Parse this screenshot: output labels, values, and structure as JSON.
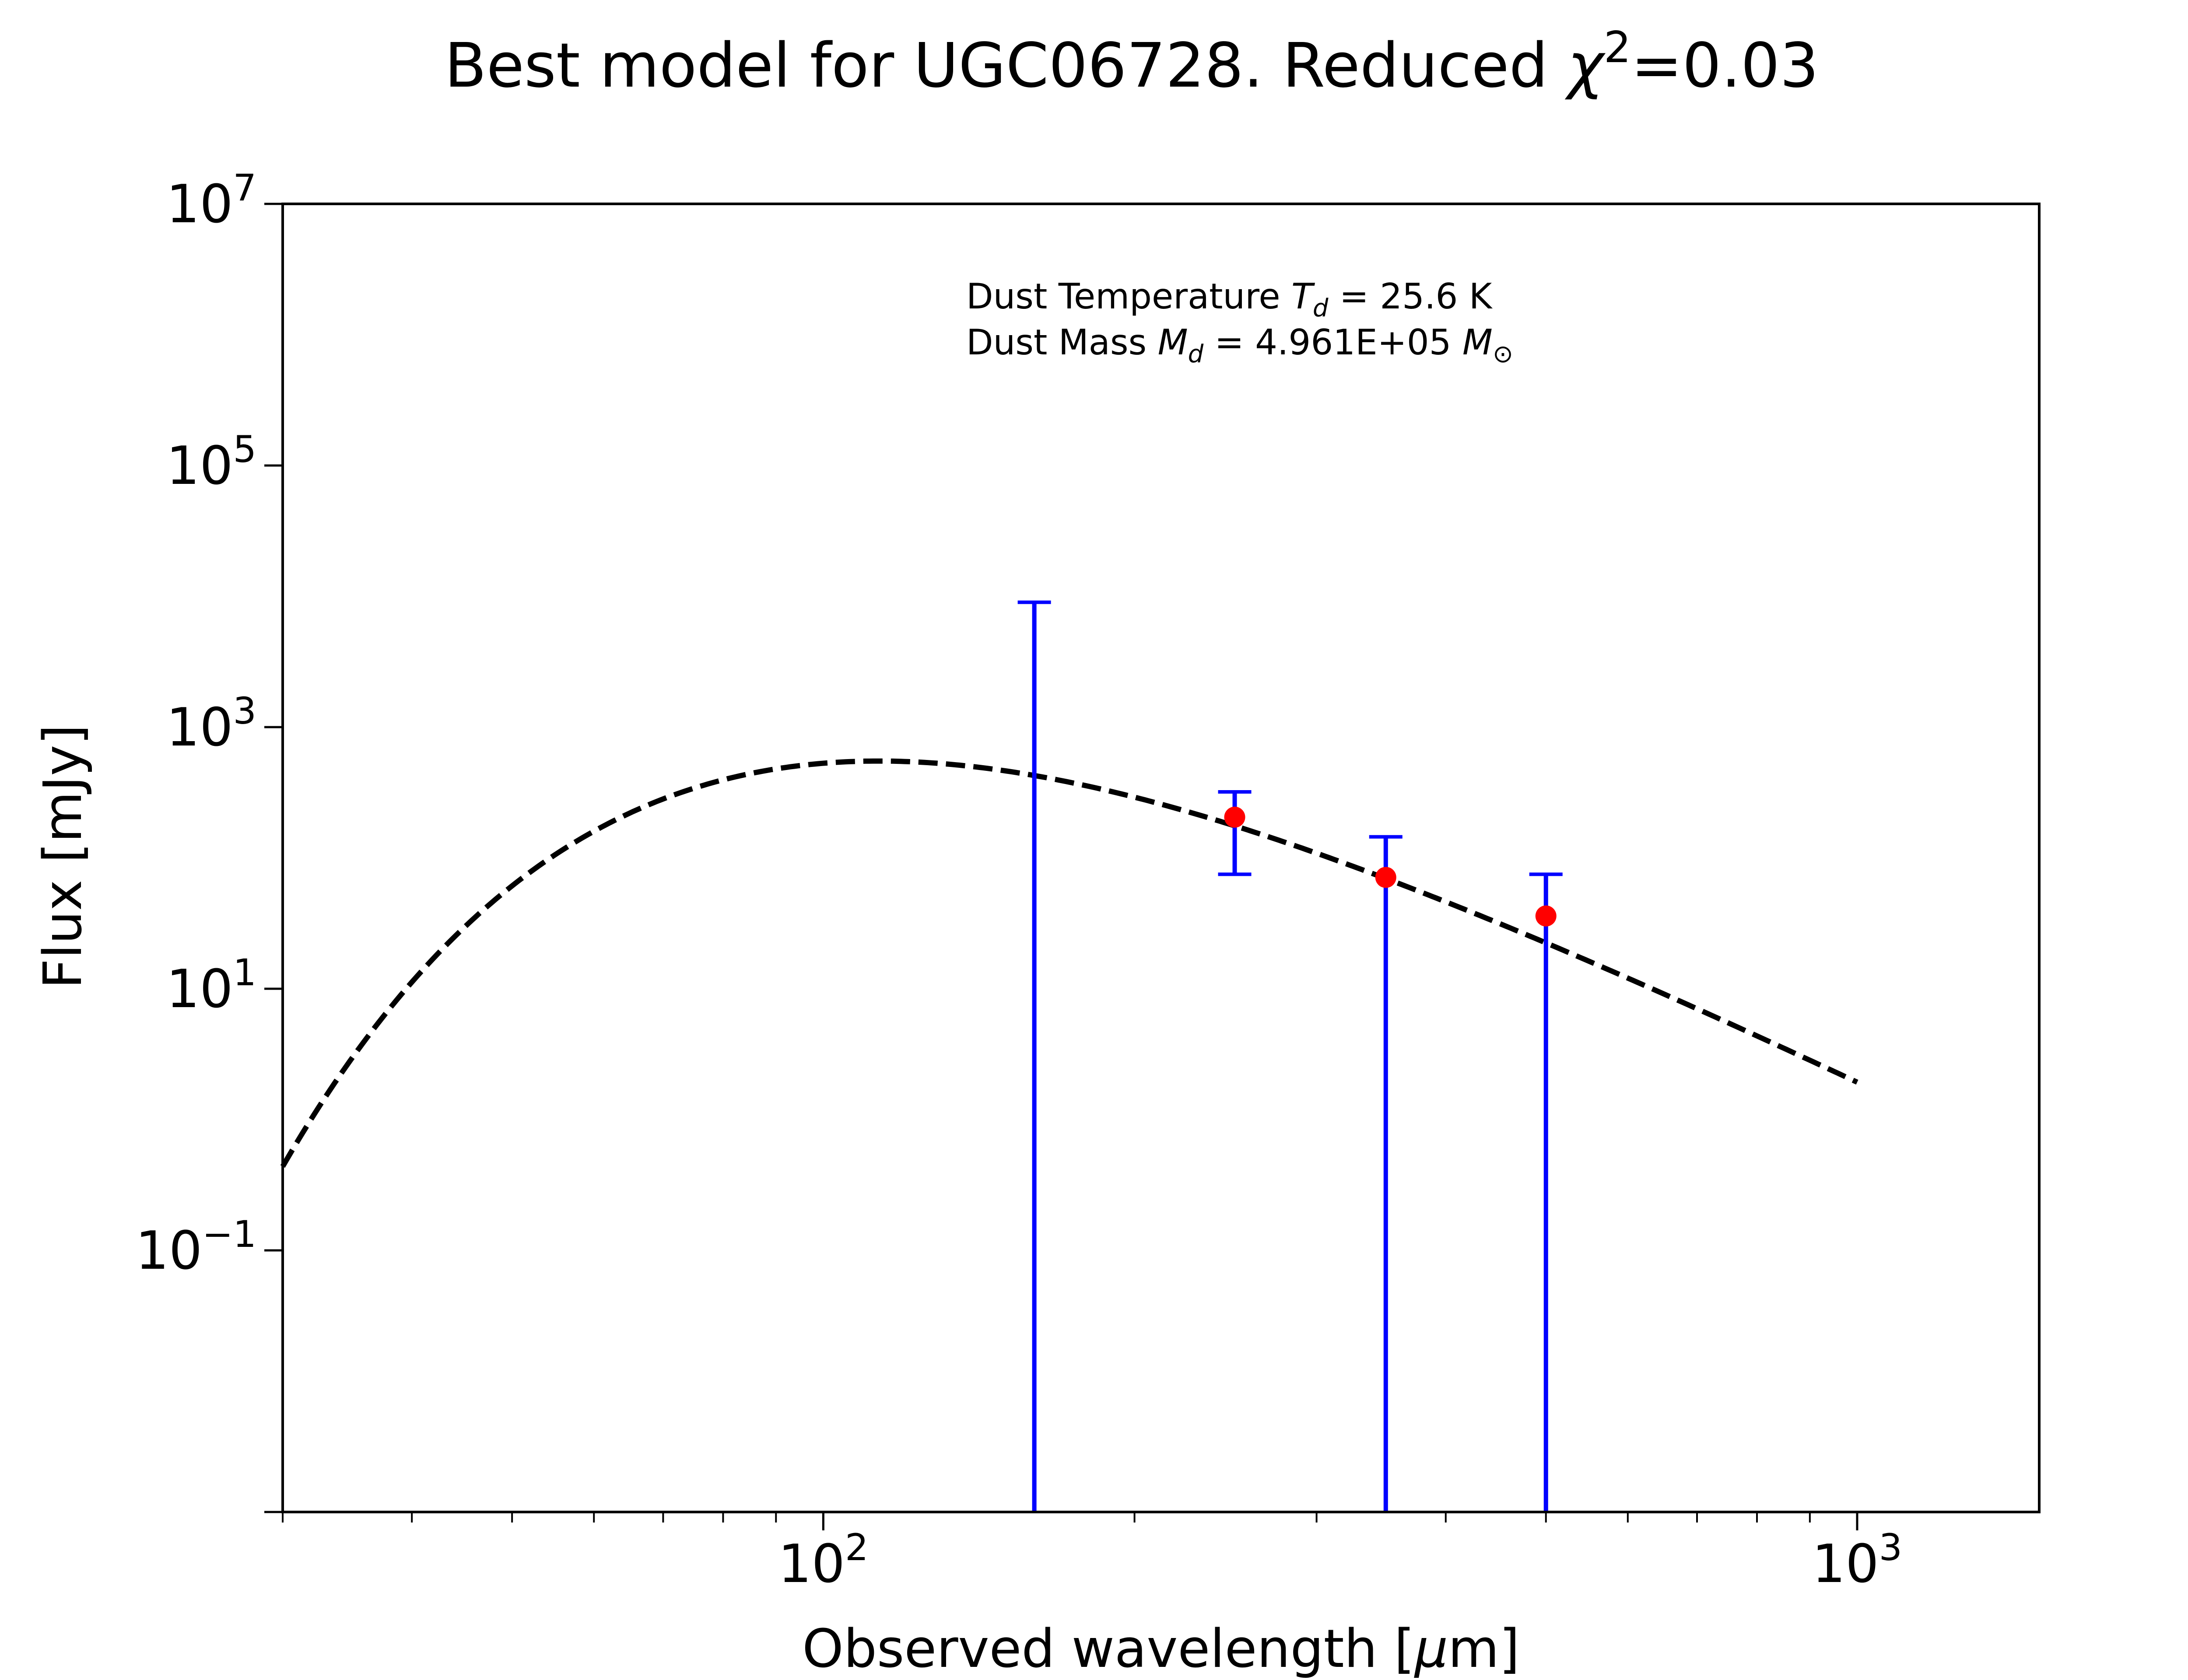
{
  "chart_data": {
    "type": "scatter",
    "title": {
      "prefix": "Best model for UGC06728. Reduced ",
      "symbol": "χ",
      "sup": "2",
      "suffix": "=0.03"
    },
    "xlabel": {
      "prefix": "Observed wavelength [",
      "symbol": "μ",
      "suffix": "m]"
    },
    "ylabel": "Flux [mJy]",
    "x_scale": "log",
    "y_scale": "log",
    "xlim": [
      30,
      1500
    ],
    "ylim": [
      0.001,
      10000000
    ],
    "x_ticks": [
      {
        "value": 100,
        "base": "10",
        "exp": "2"
      },
      {
        "value": 1000,
        "base": "10",
        "exp": "3"
      }
    ],
    "y_ticks": [
      {
        "value": 0.1,
        "base": "10",
        "exp": "−1"
      },
      {
        "value": 10,
        "base": "10",
        "exp": "1"
      },
      {
        "value": 1000,
        "base": "10",
        "exp": "3"
      },
      {
        "value": 100000,
        "base": "10",
        "exp": "5"
      },
      {
        "value": 10000000,
        "base": "10",
        "exp": "7"
      }
    ],
    "annotation": {
      "line1": {
        "prefix": "Dust Temperature ",
        "symbol": "T",
        "sub": "d",
        "suffix": " = 25.6 K"
      },
      "line2": {
        "prefix": "Dust Mass ",
        "symbol": "M",
        "sub": "d",
        "mid": " = 4.961E+05 ",
        "symbol2": "M",
        "sub2": "⊙"
      }
    },
    "model": {
      "style": "dashed",
      "color": "#000000",
      "T_d": 25.6,
      "beta": 2,
      "peak_wavelength": 115,
      "peak_flux": 550,
      "x_range": [
        30,
        1000
      ]
    },
    "detections": [
      {
        "x": 250,
        "y": 205,
        "yerr_low": 75,
        "yerr_high": 320
      },
      {
        "x": 350,
        "y": 71,
        "yerr_low": 0.001,
        "yerr_high": 145
      },
      {
        "x": 500,
        "y": 36,
        "yerr_low": 0.001,
        "yerr_high": 75
      }
    ],
    "limits": [
      {
        "x": 160,
        "y_low": 0.001,
        "y_high": 9000
      }
    ],
    "colors": {
      "points": "#ff0000",
      "errorbars": "#0000ff",
      "model": "#000000"
    }
  }
}
